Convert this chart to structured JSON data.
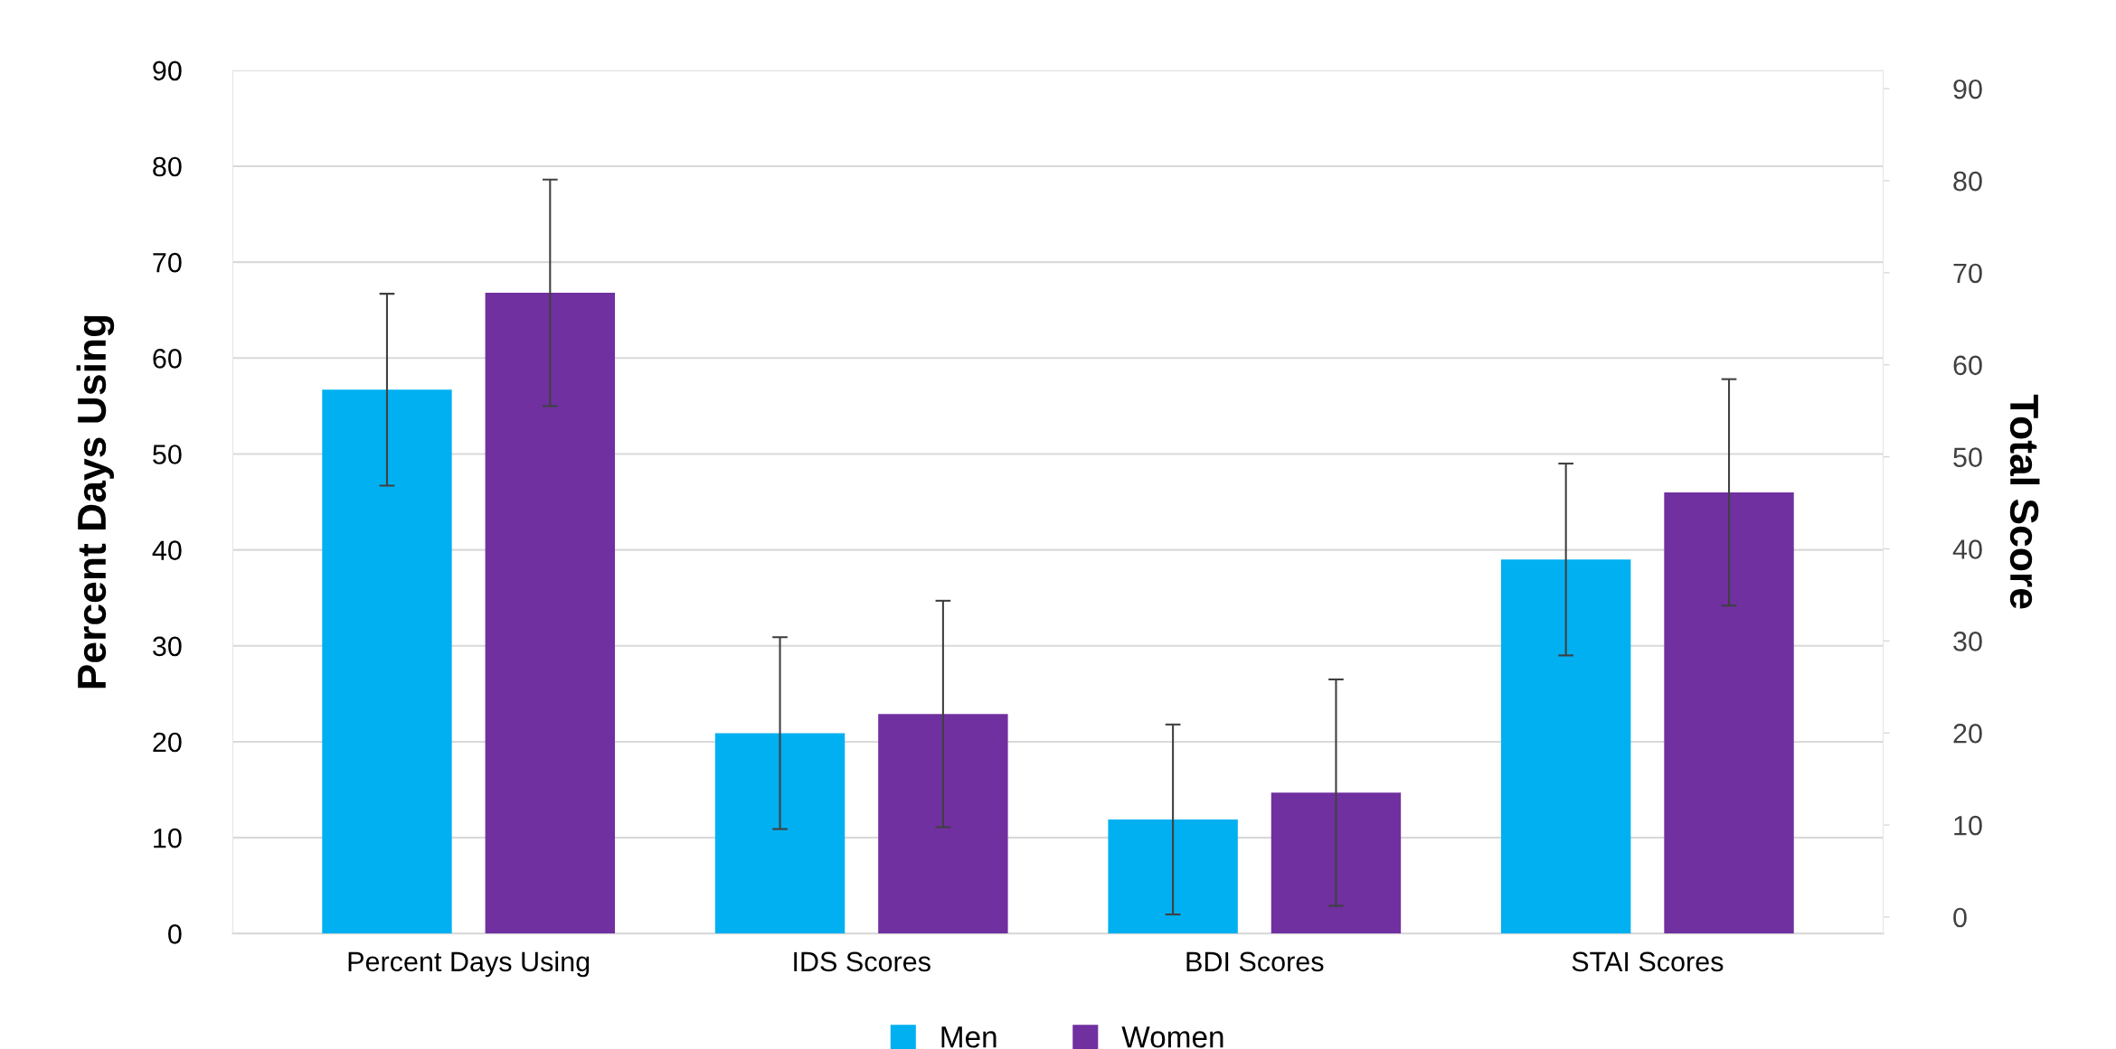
{
  "chart_data": {
    "type": "bar",
    "categories": [
      "Percent Days Using",
      "IDS Scores",
      "BDI Scores",
      "STAI Scores"
    ],
    "series": [
      {
        "name": "Men",
        "color": "#00b0f0",
        "values": [
          56.7,
          20.9,
          11.9,
          39.0
        ],
        "errors": [
          10,
          10,
          9.9,
          10
        ]
      },
      {
        "name": "Women",
        "color": "#7030a0",
        "values": [
          66.8,
          22.9,
          14.7,
          46.0
        ],
        "errors": [
          11.8,
          11.8,
          11.8,
          11.8
        ]
      }
    ],
    "ylabel": "Percent Days Using",
    "y2label": "Total Score",
    "ylim": [
      0,
      90
    ],
    "yticks": [
      0,
      10,
      20,
      30,
      40,
      50,
      60,
      70,
      80,
      90
    ],
    "y2lim": [
      -1.8,
      92.0
    ],
    "y2ticks": [
      0,
      10,
      20,
      30,
      40,
      50,
      60,
      70,
      80,
      90
    ],
    "grid": "y",
    "legend": "bottom"
  }
}
